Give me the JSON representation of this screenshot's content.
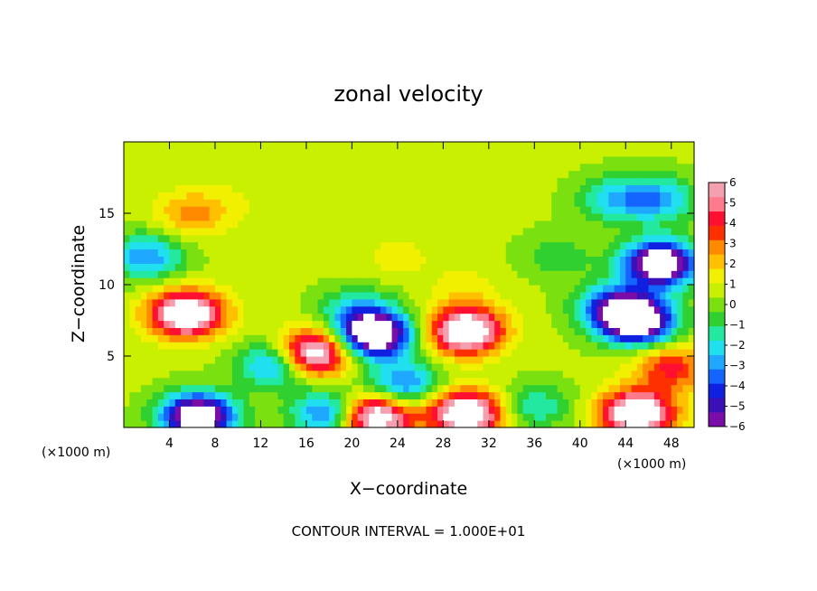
{
  "chart_data": {
    "type": "heatmap",
    "title": "zonal velocity",
    "xlabel": "X−coordinate",
    "ylabel": "Z−coordinate",
    "x_unit_note": "(×1000 m)",
    "y_unit_note": "(×1000 m)",
    "xlim": [
      0,
      50
    ],
    "ylim": [
      0,
      20
    ],
    "x_ticks": [
      4,
      8,
      12,
      16,
      20,
      24,
      28,
      32,
      36,
      40,
      44,
      48
    ],
    "y_ticks": [
      5,
      10,
      15
    ],
    "colorbar": {
      "min": -6,
      "max": 6,
      "labels": [
        "6",
        "5",
        "4",
        "3",
        "2",
        "1",
        "0",
        "−1",
        "−2",
        "−3",
        "−4",
        "−5",
        "−6"
      ],
      "colors": [
        "#7a0da8",
        "#3b10b8",
        "#1020e0",
        "#1464ff",
        "#1ea8ff",
        "#20e0f0",
        "#22e8a0",
        "#30d030",
        "#7ae010",
        "#c8f000",
        "#f0f000",
        "#ffc000",
        "#ff8a00",
        "#ff3000",
        "#ff1030",
        "#ff7a8a",
        "#f4a0b0"
      ],
      "out_of_range_color": "#ffffff",
      "grid": false
    },
    "annotation": "CONTOUR INTERVAL = 1.000E+01",
    "background_value": 0.5,
    "features": [
      {
        "x": 2,
        "z": 12,
        "value": -3.5
      },
      {
        "x": 5.5,
        "z": 8,
        "value": 9
      },
      {
        "x": 6,
        "z": 15,
        "value": 3
      },
      {
        "x": 10,
        "z": 16,
        "value": 1
      },
      {
        "x": 16.5,
        "z": 5.2,
        "value": 9
      },
      {
        "x": 13.5,
        "z": 4.5,
        "value": -4.5
      },
      {
        "x": 22,
        "z": 6.5,
        "value": -9
      },
      {
        "x": 20.5,
        "z": 8.2,
        "value": -2.5
      },
      {
        "x": 30,
        "z": 6.8,
        "value": 9
      },
      {
        "x": 30,
        "z": 9.8,
        "value": 1.5
      },
      {
        "x": 24.5,
        "z": 3,
        "value": -4
      },
      {
        "x": 6.5,
        "z": 0.8,
        "value": -9
      },
      {
        "x": 22,
        "z": 0.8,
        "value": 9
      },
      {
        "x": 18,
        "z": 1,
        "value": -4.5
      },
      {
        "x": 30,
        "z": 1,
        "value": 9
      },
      {
        "x": 36,
        "z": 1.5,
        "value": -2
      },
      {
        "x": 45,
        "z": 1,
        "value": 9
      },
      {
        "x": 47,
        "z": 11.5,
        "value": -9
      },
      {
        "x": 45,
        "z": 7.5,
        "value": -9
      },
      {
        "x": 43,
        "z": 8.5,
        "value": -4.5
      },
      {
        "x": 48,
        "z": 4.2,
        "value": 4.5
      },
      {
        "x": 43,
        "z": 16,
        "value": -2.5
      },
      {
        "x": 47,
        "z": 16,
        "value": -3
      },
      {
        "x": 38,
        "z": 12,
        "value": -1
      },
      {
        "x": 30,
        "z": 17,
        "value": 1
      },
      {
        "x": 24,
        "z": 12,
        "value": 1.5
      }
    ]
  }
}
